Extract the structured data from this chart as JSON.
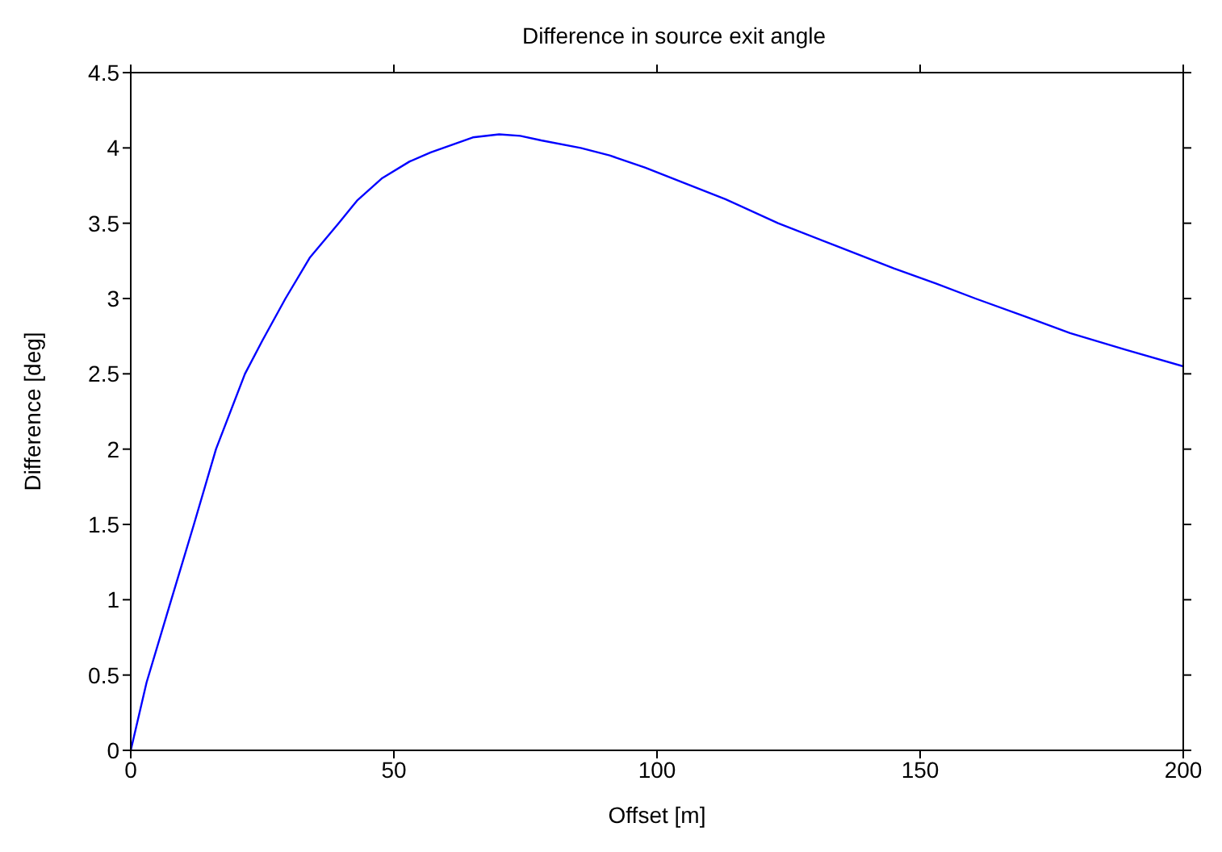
{
  "chart_data": {
    "type": "line",
    "title": "Difference in source exit angle",
    "xlabel": "Offset [m]",
    "ylabel": "Difference [deg]",
    "x": [
      0,
      3,
      7.7,
      12,
      16.2,
      21.7,
      25,
      29.4,
      34,
      39.5,
      43,
      47.8,
      53,
      57,
      61,
      65,
      70,
      74,
      78,
      85.5,
      91,
      97.7,
      105,
      113,
      123,
      134,
      145,
      153,
      160.5,
      170,
      178.5,
      189,
      200
    ],
    "series": [
      {
        "color": "#0000ff",
        "values": [
          0,
          0.45,
          1,
          1.5,
          2,
          2.5,
          2.72,
          3,
          3.27,
          3.5,
          3.65,
          3.8,
          3.91,
          3.97,
          4.02,
          4.07,
          4.09,
          4.08,
          4.05,
          4.0,
          3.95,
          3.87,
          3.77,
          3.66,
          3.5,
          3.35,
          3.2,
          3.1,
          3.0,
          2.88,
          2.77,
          2.66,
          2.55
        ]
      }
    ],
    "xlim": [
      0,
      200
    ],
    "xticks": [
      0,
      50,
      100,
      150,
      200
    ],
    "ylim": [
      0,
      4.5
    ],
    "yticks": [
      0,
      0.5,
      1,
      1.5,
      2,
      2.5,
      3,
      3.5,
      4,
      4.5
    ],
    "marker": "none",
    "line_style": "solid"
  }
}
